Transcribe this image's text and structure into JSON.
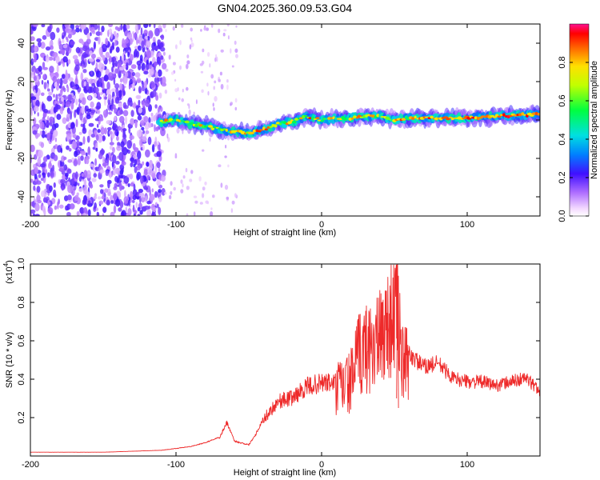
{
  "title": "GN04.2025.360.09.53.G04",
  "spectrogram": {
    "xlabel": "Height of straight line (km)",
    "ylabel": "Frequency (Hz)",
    "xticks": [
      "-200",
      "-100",
      "0",
      "100"
    ],
    "yticks": [
      "40",
      "20",
      "0",
      "-20",
      "-40"
    ]
  },
  "colorbar": {
    "label": "Normalized spectral amplitude",
    "ticks": [
      "0.0",
      "0.2",
      "0.4",
      "0.6",
      "0.8"
    ]
  },
  "snr": {
    "xlabel": "Height of straight line (km)",
    "ylabel": "SNR (10 * v/v)",
    "scale_label": "(x10",
    "scale_exp": "4",
    "scale_close": ")",
    "xticks": [
      "-200",
      "-100",
      "0",
      "100"
    ],
    "yticks": [
      "1.0",
      "0.8",
      "0.6",
      "0.4",
      "0.2"
    ]
  },
  "chart_data": [
    {
      "type": "heatmap",
      "title": "GN04.2025.360.09.53.G04",
      "xlabel": "Height of straight line (km)",
      "ylabel": "Frequency (Hz)",
      "xlim": [
        -200,
        150
      ],
      "ylim": [
        -50,
        50
      ],
      "colorbar_range": [
        0,
        1
      ],
      "colorbar_label": "Normalized spectral amplitude",
      "ridge_x": [
        -110,
        -100,
        -90,
        -80,
        -70,
        -60,
        -50,
        -40,
        -30,
        -20,
        -10,
        0,
        10,
        20,
        30,
        40,
        50,
        60,
        80,
        100,
        120,
        150
      ],
      "ridge_y": [
        -1,
        0,
        -2,
        -3,
        -5,
        -6,
        -7,
        -5,
        -2,
        -1,
        2,
        0,
        1,
        1,
        2,
        2,
        0,
        1,
        1,
        1,
        2,
        3
      ]
    },
    {
      "type": "line",
      "xlabel": "Height of straight line (km)",
      "ylabel": "SNR (10 * v/v)",
      "xlim": [
        -200,
        150
      ],
      "ylim": [
        0,
        1.0
      ],
      "y_scale": "x10^4",
      "x": [
        -200,
        -150,
        -110,
        -90,
        -80,
        -70,
        -65,
        -60,
        -50,
        -45,
        -40,
        -30,
        -20,
        -10,
        0,
        10,
        20,
        25,
        30,
        40,
        45,
        50,
        52,
        55,
        60,
        70,
        80,
        90,
        100,
        110,
        120,
        130,
        140,
        150
      ],
      "y": [
        0.02,
        0.02,
        0.03,
        0.05,
        0.07,
        0.1,
        0.18,
        0.08,
        0.06,
        0.12,
        0.2,
        0.3,
        0.32,
        0.38,
        0.4,
        0.4,
        0.45,
        0.6,
        0.65,
        0.7,
        0.8,
        0.85,
        1.0,
        0.55,
        0.55,
        0.48,
        0.5,
        0.42,
        0.4,
        0.4,
        0.38,
        0.4,
        0.42,
        0.35
      ]
    }
  ]
}
